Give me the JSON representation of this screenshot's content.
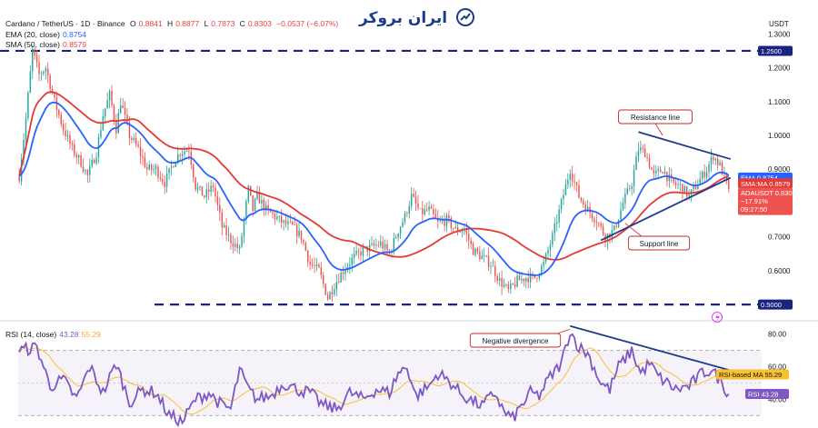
{
  "header": {
    "symbol": "Cardano / TetherUS · 1D · Binance",
    "o_label": "O",
    "o_value": "0.8841",
    "h_label": "H",
    "h_value": "0.8877",
    "l_label": "L",
    "l_value": "0.7873",
    "c_label": "C",
    "c_value": "0.8303",
    "change": "−0.0537 (−6.07%)",
    "ema_label": "EMA (20, close)",
    "ema_value": "0.8754",
    "sma_label": "SMA (50, close)",
    "sma_value": "0.8579"
  },
  "logo_text": "ایران بروکر",
  "currency": "USDT",
  "rsi_header": {
    "label": "RSI (14, close)",
    "rsi": "43.28",
    "ma": "55.29"
  },
  "colors": {
    "up": "#26a69a",
    "down": "#ef5350",
    "ema": "#2962ff",
    "sma": "#e53935",
    "rsi": "#7e57c2",
    "rsi_ma": "#fbc02d",
    "hline": "#1a237e",
    "trend": "#1f3b8c"
  },
  "chart_data": [
    {
      "type": "candlestick",
      "title": "Cardano / TetherUS · 1D · Binance",
      "ylim": [
        0.46,
        1.36
      ],
      "y_ticks": [
        "1.3000",
        "1.2000",
        "1.1000",
        "1.0000",
        "0.9000",
        "0.8000",
        "0.7000",
        "0.6000",
        "0.5000"
      ],
      "y_tick_values": [
        1.3,
        1.2,
        1.1,
        1.0,
        0.9,
        0.8,
        0.7,
        0.6,
        0.5
      ],
      "close_anchors": [
        [
          0,
          0.88
        ],
        [
          3,
          1.05
        ],
        [
          6,
          1.25
        ],
        [
          9,
          1.18
        ],
        [
          12,
          1.2
        ],
        [
          16,
          1.1
        ],
        [
          20,
          1.02
        ],
        [
          24,
          0.96
        ],
        [
          28,
          0.92
        ],
        [
          31,
          0.88
        ],
        [
          35,
          0.95
        ],
        [
          38,
          1.06
        ],
        [
          41,
          1.12
        ],
        [
          44,
          1.02
        ],
        [
          46,
          1.1
        ],
        [
          50,
          1.0
        ],
        [
          54,
          0.96
        ],
        [
          58,
          0.9
        ],
        [
          62,
          0.9
        ],
        [
          66,
          0.86
        ],
        [
          70,
          0.92
        ],
        [
          73,
          0.95
        ],
        [
          77,
          0.96
        ],
        [
          80,
          0.85
        ],
        [
          84,
          0.82
        ],
        [
          88,
          0.85
        ],
        [
          92,
          0.73
        ],
        [
          96,
          0.69
        ],
        [
          100,
          0.66
        ],
        [
          104,
          0.84
        ],
        [
          106,
          0.78
        ],
        [
          108,
          0.82
        ],
        [
          112,
          0.78
        ],
        [
          116,
          0.76
        ],
        [
          120,
          0.74
        ],
        [
          124,
          0.73
        ],
        [
          128,
          0.7
        ],
        [
          132,
          0.62
        ],
        [
          136,
          0.6
        ],
        [
          140,
          0.52
        ],
        [
          144,
          0.57
        ],
        [
          148,
          0.61
        ],
        [
          152,
          0.64
        ],
        [
          156,
          0.66
        ],
        [
          160,
          0.67
        ],
        [
          164,
          0.68
        ],
        [
          168,
          0.65
        ],
        [
          172,
          0.72
        ],
        [
          175,
          0.76
        ],
        [
          178,
          0.82
        ],
        [
          182,
          0.77
        ],
        [
          186,
          0.78
        ],
        [
          190,
          0.74
        ],
        [
          194,
          0.75
        ],
        [
          198,
          0.72
        ],
        [
          202,
          0.72
        ],
        [
          206,
          0.66
        ],
        [
          210,
          0.64
        ],
        [
          214,
          0.62
        ],
        [
          218,
          0.57
        ],
        [
          222,
          0.54
        ],
        [
          226,
          0.57
        ],
        [
          230,
          0.58
        ],
        [
          234,
          0.58
        ],
        [
          238,
          0.62
        ],
        [
          242,
          0.7
        ],
        [
          246,
          0.8
        ],
        [
          250,
          0.9
        ],
        [
          254,
          0.82
        ],
        [
          258,
          0.78
        ],
        [
          262,
          0.75
        ],
        [
          266,
          0.7
        ],
        [
          270,
          0.72
        ],
        [
          274,
          0.8
        ],
        [
          278,
          0.86
        ],
        [
          281,
          0.96
        ],
        [
          284,
          0.95
        ],
        [
          288,
          0.88
        ],
        [
          292,
          0.9
        ],
        [
          296,
          0.86
        ],
        [
          300,
          0.85
        ],
        [
          304,
          0.82
        ],
        [
          308,
          0.86
        ],
        [
          312,
          0.9
        ],
        [
          315,
          0.94
        ],
        [
          318,
          0.91
        ],
        [
          321,
          0.86
        ],
        [
          322,
          0.8303
        ]
      ],
      "ema": {
        "name": "EMA (20, close)",
        "last": 0.8754
      },
      "sma": {
        "name": "SMA (50, close)",
        "last": 0.8579
      },
      "price_labels": [
        {
          "text": "1.2500",
          "value": 1.25,
          "color": "#1a237e"
        },
        {
          "text": "EMA",
          "value2": "0.8754",
          "value": 0.8754,
          "color": "#2962ff"
        },
        {
          "text": "SMA:MA",
          "value2": "0.8579",
          "value": 0.8579,
          "color": "#e53935"
        },
        {
          "text": "ADAUSDT",
          "value2": "0.8303",
          "value": 0.8303,
          "color": "#ef5350",
          "extra1": "−17.91%",
          "extra2": "09:27:50"
        },
        {
          "text": "0.5000",
          "value": 0.5,
          "color": "#1a237e"
        }
      ],
      "horizontal_levels": [
        1.25,
        0.5
      ],
      "annotations": [
        "Resistance line",
        "Support line"
      ]
    },
    {
      "type": "line",
      "title": "RSI (14, close)",
      "ylim": [
        24,
        86
      ],
      "y_ticks": [
        "80.00",
        "60.00",
        "40.00"
      ],
      "y_tick_values": [
        80,
        60,
        40
      ],
      "bands": [
        70,
        30
      ],
      "rsi_anchors": [
        [
          0,
          70
        ],
        [
          8,
          72
        ],
        [
          14,
          48
        ],
        [
          20,
          52
        ],
        [
          26,
          40
        ],
        [
          32,
          60
        ],
        [
          38,
          44
        ],
        [
          44,
          62
        ],
        [
          50,
          38
        ],
        [
          56,
          46
        ],
        [
          62,
          44
        ],
        [
          68,
          30
        ],
        [
          74,
          26
        ],
        [
          80,
          40
        ],
        [
          86,
          44
        ],
        [
          92,
          36
        ],
        [
          96,
          34
        ],
        [
          100,
          58
        ],
        [
          104,
          46
        ],
        [
          108,
          40
        ],
        [
          114,
          42
        ],
        [
          120,
          50
        ],
        [
          126,
          46
        ],
        [
          132,
          44
        ],
        [
          138,
          36
        ],
        [
          144,
          34
        ],
        [
          150,
          44
        ],
        [
          156,
          40
        ],
        [
          162,
          46
        ],
        [
          168,
          44
        ],
        [
          172,
          56
        ],
        [
          176,
          60
        ],
        [
          180,
          42
        ],
        [
          186,
          48
        ],
        [
          190,
          56
        ],
        [
          196,
          50
        ],
        [
          200,
          44
        ],
        [
          204,
          40
        ],
        [
          210,
          36
        ],
        [
          216,
          44
        ],
        [
          220,
          32
        ],
        [
          224,
          28
        ],
        [
          228,
          36
        ],
        [
          232,
          44
        ],
        [
          236,
          42
        ],
        [
          240,
          52
        ],
        [
          246,
          62
        ],
        [
          250,
          82
        ],
        [
          254,
          72
        ],
        [
          258,
          68
        ],
        [
          264,
          50
        ],
        [
          268,
          46
        ],
        [
          272,
          60
        ],
        [
          278,
          70
        ],
        [
          282,
          56
        ],
        [
          286,
          62
        ],
        [
          290,
          54
        ],
        [
          294,
          50
        ],
        [
          298,
          46
        ],
        [
          304,
          48
        ],
        [
          310,
          56
        ],
        [
          314,
          58
        ],
        [
          318,
          52
        ],
        [
          322,
          43.28
        ]
      ],
      "rsi_last": 43.28,
      "ma_last": 55.29,
      "price_labels": [
        {
          "text": "RSI-based MA",
          "value2": "55.29",
          "value": 55.29,
          "color": "#fbc02d",
          "textColor": "#131722"
        },
        {
          "text": "RSI",
          "value2": "43.28",
          "value": 43.28,
          "color": "#7e57c2",
          "textColor": "#ffffff"
        }
      ],
      "annotations": [
        "Negative divergence"
      ]
    }
  ]
}
